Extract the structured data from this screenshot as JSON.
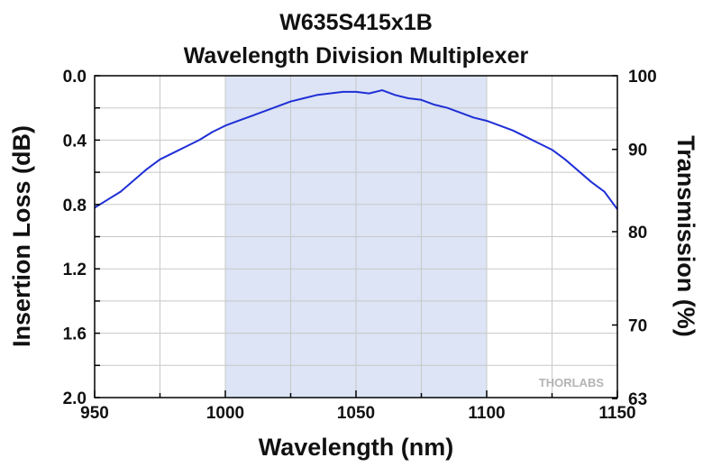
{
  "chart_data": {
    "type": "line",
    "title": "W635S415x1B",
    "subtitle": "Wavelength Division Multiplexer",
    "xlabel": "Wavelength (nm)",
    "ylabel": "Insertion Loss (dB)",
    "y2label": "Transmission (%)",
    "xlim": [
      950,
      1150
    ],
    "ylim": [
      0.0,
      2.0
    ],
    "y_inverted": true,
    "x_ticks": [
      "950",
      "1000",
      "1050",
      "1100",
      "1150"
    ],
    "y_ticks": [
      "0.0",
      "0.4",
      "0.8",
      "1.2",
      "1.6",
      "2.0"
    ],
    "y2_ticks": [
      "100",
      "90",
      "80",
      "70",
      "63"
    ],
    "grid": true,
    "shaded_band": [
      1000,
      1100
    ],
    "watermark": "THORLABS",
    "series": [
      {
        "x": [
          950,
          955,
          960,
          965,
          970,
          975,
          980,
          985,
          990,
          995,
          1000,
          1005,
          1010,
          1015,
          1020,
          1025,
          1030,
          1035,
          1040,
          1045,
          1050,
          1055,
          1060,
          1065,
          1070,
          1075,
          1080,
          1085,
          1090,
          1095,
          1100,
          1105,
          1110,
          1115,
          1120,
          1125,
          1130,
          1135,
          1140,
          1145,
          1150
        ],
        "values": [
          0.82,
          0.77,
          0.72,
          0.65,
          0.58,
          0.52,
          0.48,
          0.44,
          0.4,
          0.35,
          0.31,
          0.28,
          0.25,
          0.22,
          0.19,
          0.16,
          0.14,
          0.12,
          0.11,
          0.1,
          0.1,
          0.11,
          0.09,
          0.12,
          0.14,
          0.15,
          0.18,
          0.2,
          0.23,
          0.26,
          0.28,
          0.31,
          0.34,
          0.38,
          0.42,
          0.46,
          0.52,
          0.59,
          0.66,
          0.72,
          0.83
        ]
      }
    ],
    "colors": {
      "line": "#1f2fd6",
      "band": "#dce4f5",
      "grid": "#c8c8c8",
      "axis": "#000000"
    }
  }
}
